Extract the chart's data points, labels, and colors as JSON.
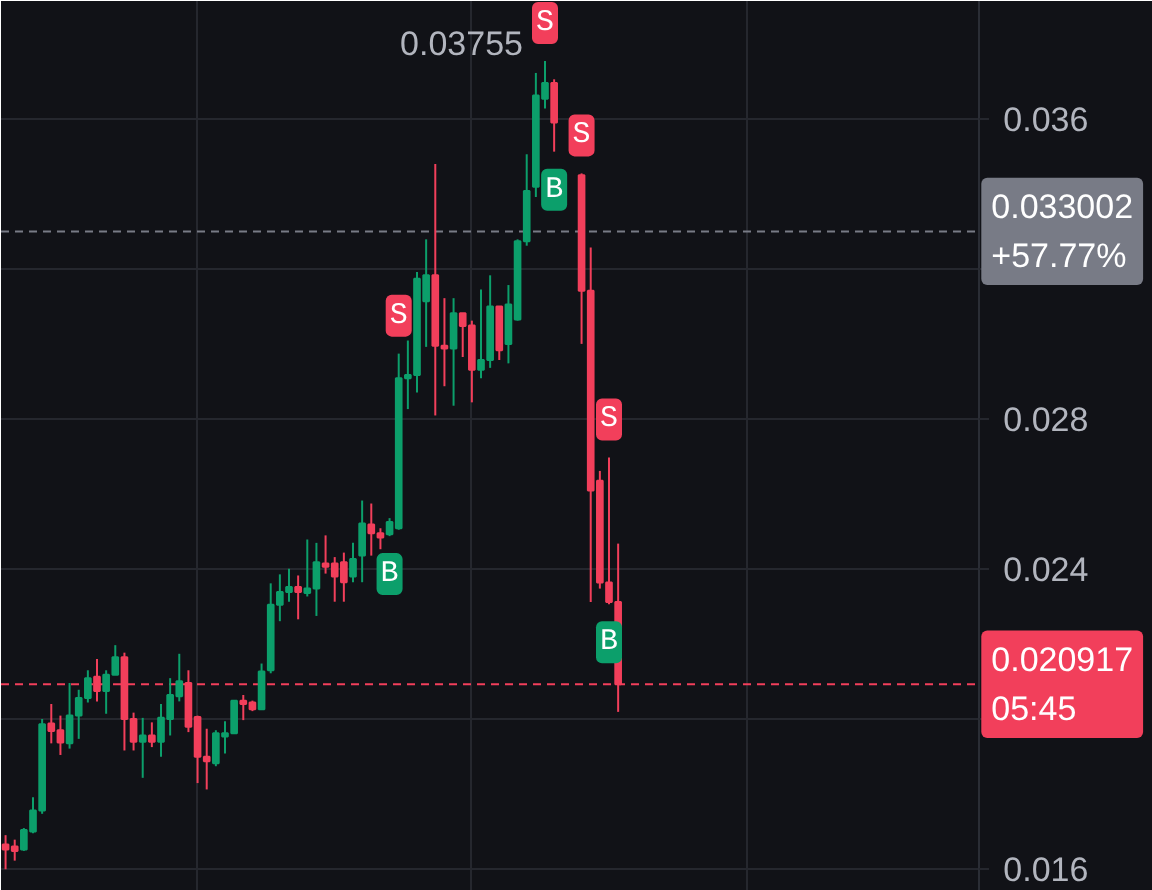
{
  "chart_data": {
    "type": "candlestick",
    "categories": [
      null,
      null,
      null,
      null,
      null,
      null,
      null,
      null,
      null,
      null,
      null,
      null,
      null,
      null,
      null,
      null,
      null,
      null,
      null,
      null,
      null,
      null,
      null,
      null,
      null,
      null,
      null,
      null,
      null,
      null,
      null,
      null,
      null,
      null,
      null,
      null,
      null,
      null,
      null,
      null,
      null,
      null,
      null,
      null,
      null,
      null,
      null,
      null,
      null,
      null,
      null,
      null,
      null,
      null,
      null,
      null,
      null,
      null,
      null,
      null,
      null,
      null,
      null,
      null,
      null,
      null,
      null,
      null,
      null,
      null,
      null,
      null,
      null,
      null,
      null,
      null,
      null,
      null,
      null,
      null,
      null,
      null,
      null,
      null,
      null,
      null,
      null,
      null,
      null,
      null,
      null,
      null,
      null,
      null,
      null,
      null,
      null,
      null,
      null,
      null,
      null,
      null,
      null,
      null,
      null,
      null,
      null,
      null,
      null,
      null,
      null,
      null,
      null,
      null,
      null,
      null,
      null,
      null,
      null,
      null,
      null,
      null,
      null,
      null,
      null,
      null
    ],
    "ohlc": [
      [
        0.01664,
        0.01689,
        0.01598,
        0.01651
      ],
      [
        0.01659,
        0.01677,
        0.01621,
        0.01647
      ],
      [
        0.01651,
        0.01708,
        0.01647,
        0.01703
      ],
      [
        0.01699,
        0.0179,
        0.01694,
        0.01755
      ],
      [
        0.01755,
        0.01999,
        0.01746,
        0.01985
      ],
      [
        0.01987,
        0.02039,
        0.01934,
        0.01967
      ],
      [
        0.01969,
        0.02008,
        0.01903,
        0.01936
      ],
      [
        0.01934,
        0.02095,
        0.0192,
        0.02008
      ],
      [
        0.02008,
        0.02077,
        0.01946,
        0.02055
      ],
      [
        0.02055,
        0.02129,
        0.02043,
        0.02108
      ],
      [
        0.02112,
        0.02159,
        0.02046,
        0.02074
      ],
      [
        0.02074,
        0.02129,
        0.02013,
        0.02117
      ],
      [
        0.02117,
        0.02196,
        0.02117,
        0.02164
      ],
      [
        0.02164,
        0.02176,
        0.01915,
        0.01999
      ],
      [
        0.01999,
        0.02016,
        0.01915,
        0.01938
      ],
      [
        0.01938,
        0.02002,
        0.01842,
        0.01955
      ],
      [
        0.01955,
        0.0199,
        0.01924,
        0.01938
      ],
      [
        0.01938,
        0.02039,
        0.01898,
        0.02002
      ],
      [
        0.01999,
        0.02108,
        0.01955,
        0.02063
      ],
      [
        0.0206,
        0.02173,
        0.02046,
        0.021
      ],
      [
        0.02095,
        0.02129,
        0.01964,
        0.01978
      ],
      [
        0.02004,
        0.02008,
        0.01828,
        0.01898
      ],
      [
        0.01898,
        0.01973,
        0.01811,
        0.01886
      ],
      [
        0.01881,
        0.01969,
        0.01873,
        0.01961
      ],
      [
        0.01952,
        0.01993,
        0.01907,
        0.01961
      ],
      [
        0.01961,
        0.02048,
        0.01961,
        0.02048
      ],
      [
        0.02048,
        0.02063,
        0.01996,
        0.02039
      ],
      [
        0.02043,
        0.02048,
        0.0202,
        0.02025
      ],
      [
        0.02025,
        0.02147,
        0.02025,
        0.02126
      ],
      [
        0.02129,
        0.02361,
        0.02121,
        0.02304
      ],
      [
        0.02304,
        0.02385,
        0.0226,
        0.02338
      ],
      [
        0.02338,
        0.024,
        0.02312,
        0.02351
      ],
      [
        0.02351,
        0.02382,
        0.02265,
        0.02338
      ],
      [
        0.02335,
        0.02478,
        0.02326,
        0.02347
      ],
      [
        0.02347,
        0.02469,
        0.02274,
        0.02417
      ],
      [
        0.02414,
        0.02489,
        0.02387,
        0.02405
      ],
      [
        0.02414,
        0.02431,
        0.02312,
        0.02379
      ],
      [
        0.02417,
        0.02443,
        0.02312,
        0.02364
      ],
      [
        0.02379,
        0.02469,
        0.02364,
        0.02426
      ],
      [
        0.02435,
        0.02582,
        0.02364,
        0.02521
      ],
      [
        0.02518,
        0.02574,
        0.02435,
        0.02495
      ],
      [
        0.02495,
        0.02508,
        0.02452,
        0.02483
      ],
      [
        0.02492,
        0.02535,
        0.02487,
        0.02525
      ],
      [
        0.02508,
        0.02974,
        0.02504,
        0.02908
      ],
      [
        0.02908,
        0.03009,
        0.02826,
        0.02917
      ],
      [
        0.02917,
        0.03192,
        0.0287,
        0.03174
      ],
      [
        0.03114,
        0.03279,
        0.02992,
        0.03183
      ],
      [
        0.03183,
        0.0348,
        0.02809,
        0.02995
      ],
      [
        0.02995,
        0.03122,
        0.02887,
        0.02988
      ],
      [
        0.02988,
        0.03122,
        0.02835,
        0.03082
      ],
      [
        0.03082,
        0.03082,
        0.02965,
        0.03048
      ],
      [
        0.03049,
        0.03062,
        0.02844,
        0.02931
      ],
      [
        0.02931,
        0.03145,
        0.02908,
        0.02957
      ],
      [
        0.02957,
        0.03183,
        0.02936,
        0.031
      ],
      [
        0.031,
        0.031,
        0.02957,
        0.02983
      ],
      [
        0.03,
        0.03157,
        0.02948,
        0.03105
      ],
      [
        0.03065,
        0.03279,
        0.03062,
        0.03274
      ],
      [
        0.03274,
        0.03506,
        0.03262,
        0.03408
      ],
      [
        0.03419,
        0.03723,
        0.03392,
        0.03663
      ],
      [
        0.03654,
        0.03755,
        0.03628,
        0.03696
      ],
      [
        0.03696,
        0.03706,
        0.03513,
        0.03591
      ],
      null,
      null,
      [
        0.0345,
        0.03455,
        0.03,
        0.03142
      ],
      [
        0.03142,
        0.03257,
        0.02311,
        0.02609
      ],
      [
        0.02635,
        0.02661,
        0.02347,
        0.02363
      ],
      [
        0.02363,
        0.02697,
        0.02305,
        0.02311
      ],
      [
        0.02311,
        0.02467,
        0.02018,
        0.020917
      ],
      null,
      null,
      null,
      null,
      null,
      null,
      null,
      null,
      null,
      null,
      null,
      null,
      null,
      null,
      null,
      null,
      null,
      null,
      null,
      null,
      null,
      null,
      null,
      null,
      null,
      null,
      null,
      null,
      null,
      null,
      null,
      null,
      null,
      null,
      null,
      null,
      null,
      null,
      null,
      null,
      null,
      null,
      null,
      null,
      null,
      null,
      null,
      null,
      null,
      null,
      null,
      null,
      null,
      null,
      null,
      null,
      null,
      null
    ],
    "colors": [
      "#f23f5b",
      "#f23f5b",
      "#0c9f6b",
      "#0c9f6b",
      "#0c9f6b",
      "#f23f5b",
      "#f23f5b",
      "#0c9f6b",
      "#0c9f6b",
      "#0c9f6b",
      "#f23f5b",
      "#0c9f6b",
      "#0c9f6b",
      "#f23f5b",
      "#f23f5b",
      "#0c9f6b",
      "#f23f5b",
      "#0c9f6b",
      "#0c9f6b",
      "#0c9f6b",
      "#f23f5b",
      "#f23f5b",
      "#f23f5b",
      "#0c9f6b",
      "#0c9f6b",
      "#0c9f6b",
      "#f23f5b",
      "#f23f5b",
      "#0c9f6b",
      "#0c9f6b",
      "#0c9f6b",
      "#0c9f6b",
      "#f23f5b",
      "#0c9f6b",
      "#0c9f6b",
      "#f23f5b",
      "#f23f5b",
      "#f23f5b",
      "#0c9f6b",
      "#0c9f6b",
      "#f23f5b",
      "#f23f5b",
      "#0c9f6b",
      "#0c9f6b",
      "#0c9f6b",
      "#0c9f6b",
      "#0c9f6b",
      "#f23f5b",
      "#f23f5b",
      "#0c9f6b",
      "#f23f5b",
      "#f23f5b",
      "#0c9f6b",
      "#0c9f6b",
      "#f23f5b",
      "#0c9f6b",
      "#0c9f6b",
      "#0c9f6b",
      "#0c9f6b",
      "#0c9f6b",
      "#f23f5b",
      null,
      null,
      "#f23f5b",
      "#f23f5b",
      "#f23f5b",
      "#f23f5b",
      "#f23f5b",
      null,
      null,
      null,
      null,
      null,
      null,
      null,
      null,
      null,
      null,
      null,
      null,
      null,
      null,
      null,
      null,
      null,
      null,
      null,
      null,
      null,
      null,
      null,
      null,
      null,
      null,
      null,
      null,
      null,
      null,
      null,
      null,
      null,
      null,
      null,
      null,
      null,
      null,
      null,
      null,
      null,
      null,
      null,
      null,
      null,
      null,
      null,
      null,
      null,
      null,
      null,
      null,
      null,
      null,
      null,
      null,
      null,
      null
    ],
    "ylim": [
      0.0154,
      0.03915
    ],
    "yticks": [
      0.016,
      {
        "value": 0.02,
        "label": null
      },
      0.024,
      0.028,
      {
        "value": 0.032,
        "label": null
      },
      0.036
    ],
    "tick_labels": "y",
    "grid": true,
    "ref_lines": [
      {
        "axis": "y",
        "value": 0.033002,
        "label": "0.033002\n+57.77%",
        "color": "#787b86",
        "line_style": "dashed"
      },
      {
        "axis": "y",
        "value": 0.020917,
        "label": "0.020917\n05:45",
        "color": "#f23f5b",
        "line_style": "dashed"
      }
    ],
    "annotations": [
      "0.03755",
      {
        "text": "S",
        "y": 0.02974
      },
      {
        "text": "B",
        "y": 0.02487
      },
      {
        "text": "S",
        "y": 0.03755
      },
      {
        "text": "B",
        "y": 0.03513
      },
      {
        "text": "S",
        "y": 0.03455
      },
      {
        "text": "S",
        "y": 0.02697
      },
      {
        "text": "B",
        "y": 0.02305
      }
    ]
  }
}
